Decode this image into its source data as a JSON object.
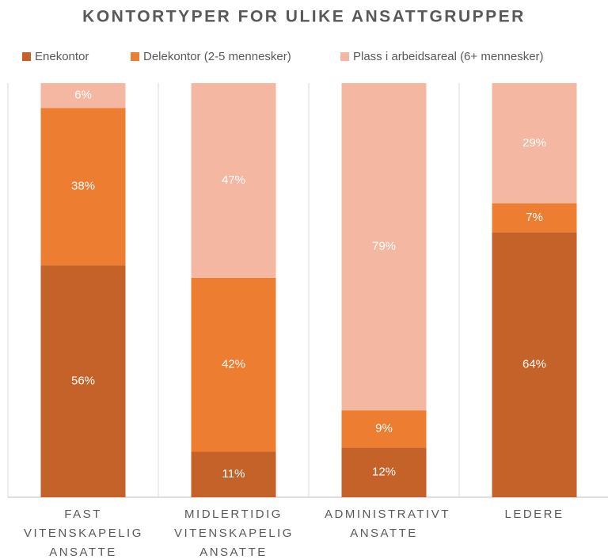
{
  "chart_data": {
    "type": "stacked_bar",
    "title": "KONTORTYPER FOR ULIKE ANSATTGRUPPER",
    "categories": [
      "FAST VITENSKAPELIG ANSATTE",
      "MIDLERTIDIG VITENSKAPELIG ANSATTE",
      "ADMINISTRATIVT ANSATTE",
      "LEDERE"
    ],
    "series": [
      {
        "name": "Enekontor",
        "color": "#c4622a",
        "values": [
          56,
          11,
          12,
          64
        ],
        "value_labels": [
          "56%",
          "11%",
          "12%",
          "64%"
        ]
      },
      {
        "name": "Delekontor (2-5 mennesker)",
        "color": "#ed7d31",
        "values": [
          38,
          42,
          9,
          7
        ],
        "value_labels": [
          "38%",
          "42%",
          "9%",
          "7%"
        ]
      },
      {
        "name": "Plass i arbeidsareal (6+ mennesker)",
        "color": "#f4b8a2",
        "values": [
          6,
          47,
          79,
          29
        ],
        "value_labels": [
          "6%",
          "47%",
          "79%",
          "29%"
        ]
      }
    ],
    "ylim": [
      0,
      100
    ],
    "legend": "top"
  }
}
